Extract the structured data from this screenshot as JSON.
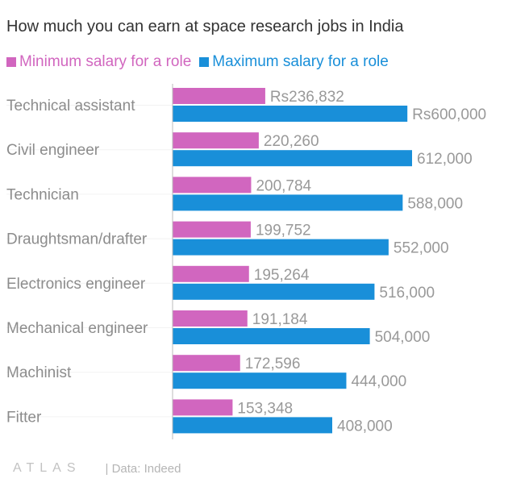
{
  "title": "How much you can earn at space research jobs in India",
  "legend": [
    {
      "label": "Minimum salary for a role",
      "color": "#d166bf"
    },
    {
      "label": "Maximum salary for a role",
      "color": "#198fd9"
    }
  ],
  "chart_data": {
    "type": "bar",
    "orientation": "horizontal",
    "categories": [
      "Technical assistant",
      "Civil engineer",
      "Technician",
      "Draughtsman/drafter",
      "Electronics engineer",
      "Mechanical engineer",
      "Machinist",
      "Fitter"
    ],
    "series": [
      {
        "name": "Minimum salary for a role",
        "color": "#d166bf",
        "values": [
          236832,
          220260,
          200784,
          199752,
          195264,
          191184,
          172596,
          153348
        ],
        "labels": [
          "Rs236,832",
          "220,260",
          "200,784",
          "199,752",
          "195,264",
          "191,184",
          "172,596",
          "153,348"
        ]
      },
      {
        "name": "Maximum salary for a role",
        "color": "#198fd9",
        "values": [
          600000,
          612000,
          588000,
          552000,
          516000,
          504000,
          444000,
          408000
        ],
        "labels": [
          "Rs600,000",
          "612,000",
          "588,000",
          "552,000",
          "516,000",
          "504,000",
          "444,000",
          "408,000"
        ]
      }
    ],
    "xlim": [
      0,
      612000
    ],
    "grid": false,
    "legend_position": "top-left"
  },
  "footer": {
    "logo": "ATLAS",
    "source": "| Data: Indeed"
  }
}
